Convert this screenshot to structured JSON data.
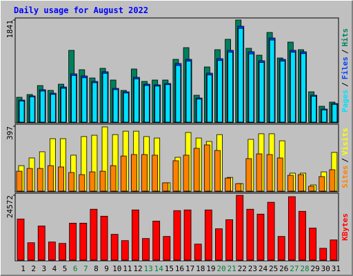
{
  "title": "Daily usage for August 2022",
  "legend_separator": "/",
  "chart_data": [
    {
      "type": "bar",
      "ylim": [
        0,
        1841
      ],
      "yticks": [
        1841
      ],
      "series": [
        {
          "name": "Hits",
          "color": "#00805c",
          "values": [
            448,
            498,
            659,
            572,
            684,
            1294,
            945,
            796,
            970,
            759,
            572,
            958,
            734,
            759,
            759,
            1132,
            1343,
            485,
            995,
            1306,
            1493,
            1841,
            1331,
            1207,
            1617,
            1157,
            1443,
            1306,
            547,
            286,
            361
          ]
        },
        {
          "name": "Files",
          "color": "#0040ff",
          "values": [
            398,
            473,
            585,
            522,
            634,
            871,
            833,
            734,
            908,
            609,
            547,
            808,
            684,
            672,
            697,
            1057,
            1132,
            435,
            883,
            1144,
            1294,
            1729,
            1269,
            1107,
            1517,
            1132,
            1294,
            1269,
            485,
            236,
            336
          ]
        },
        {
          "name": "Pages",
          "color": "#00e0ff",
          "values": [
            380,
            455,
            560,
            500,
            610,
            840,
            800,
            710,
            880,
            585,
            525,
            780,
            660,
            650,
            675,
            1020,
            1100,
            415,
            850,
            1110,
            1260,
            1690,
            1230,
            1075,
            1480,
            1100,
            1260,
            1235,
            465,
            220,
            320
          ]
        }
      ]
    },
    {
      "type": "bar",
      "ylim": [
        0,
        397
      ],
      "yticks": [
        397
      ],
      "series": [
        {
          "name": "Visits",
          "color": "#ffff00",
          "values": [
            156,
            203,
            241,
            321,
            321,
            220,
            334,
            342,
            393,
            346,
            367,
            367,
            334,
            325,
            51,
            207,
            359,
            325,
            304,
            346,
            84,
            46,
            317,
            351,
            351,
            308,
            110,
            110,
            38,
            118,
            237
          ]
        },
        {
          "name": "Sites",
          "color": "#ff8000",
          "values": [
            122,
            139,
            139,
            156,
            148,
            114,
            101,
            118,
            122,
            156,
            215,
            224,
            224,
            220,
            51,
            186,
            220,
            262,
            283,
            249,
            80,
            46,
            199,
            228,
            224,
            203,
            97,
            101,
            30,
            89,
            131
          ]
        }
      ]
    },
    {
      "type": "bar",
      "ylim": [
        0,
        24572
      ],
      "yticks": [
        24572
      ],
      "series": [
        {
          "name": "KBytes",
          "color": "#ff0000",
          "values": [
            15590,
            6605,
            12947,
            6869,
            6341,
            14004,
            14004,
            19288,
            16646,
            9776,
            7398,
            19024,
            8191,
            14796,
            8983,
            18760,
            19024,
            6077,
            19024,
            11890,
            15325,
            24572,
            19288,
            17439,
            21930,
            8983,
            24044,
            18495,
            12154,
            4492,
            7662
          ]
        }
      ],
      "categories": [
        "1",
        "2",
        "3",
        "4",
        "5",
        "6",
        "7",
        "8",
        "9",
        "10",
        "11",
        "12",
        "13",
        "14",
        "15",
        "16",
        "17",
        "18",
        "19",
        "20",
        "21",
        "22",
        "23",
        "24",
        "25",
        "26",
        "27",
        "28",
        "29",
        "30",
        "31"
      ],
      "category_colors": [
        "#000000",
        "#000000",
        "#000000",
        "#000000",
        "#000000",
        "#008040",
        "#008040",
        "#000000",
        "#000000",
        "#000000",
        "#000000",
        "#000000",
        "#008040",
        "#008040",
        "#000000",
        "#000000",
        "#000000",
        "#000000",
        "#000000",
        "#008040",
        "#008040",
        "#000000",
        "#000000",
        "#000000",
        "#000000",
        "#000000",
        "#008040",
        "#008040",
        "#000000",
        "#000000",
        "#000000"
      ]
    }
  ]
}
